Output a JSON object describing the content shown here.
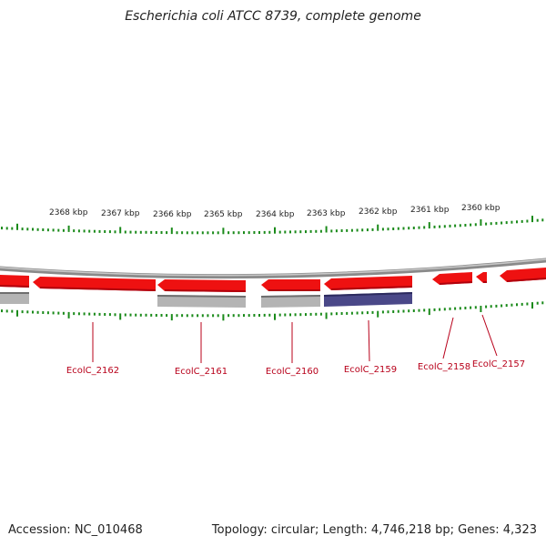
{
  "title": "Escherichia coli ATCC 8739, complete genome",
  "footer": {
    "accession": "Accession: NC_010468",
    "stats": "Topology: circular; Length: 4,746,218 bp; Genes: 4,323"
  },
  "colors": {
    "gene_forward": "#ee1111",
    "gene_shadow": "#c40010",
    "gray_feature": "#b4b4b4",
    "blue_feature": "#4a4888",
    "backbone": "#8a8a8a",
    "tick": "#1a8a1a",
    "label": "#b8001a"
  },
  "scale_labels": [
    "2368 kbp",
    "2367 kbp",
    "2366 kbp",
    "2365 kbp",
    "2364 kbp",
    "2363 kbp",
    "2362 kbp",
    "2361 kbp",
    "2360 kbp"
  ],
  "genes": [
    {
      "id": "EcolC_2162",
      "label": "EcolC_2162"
    },
    {
      "id": "EcolC_2161",
      "label": "EcolC_2161"
    },
    {
      "id": "EcolC_2160",
      "label": "EcolC_2160"
    },
    {
      "id": "EcolC_2159",
      "label": "EcolC_2159"
    },
    {
      "id": "EcolC_2158",
      "label": "EcolC_2158"
    },
    {
      "id": "EcolC_2157",
      "label": "EcolC_2157"
    }
  ]
}
